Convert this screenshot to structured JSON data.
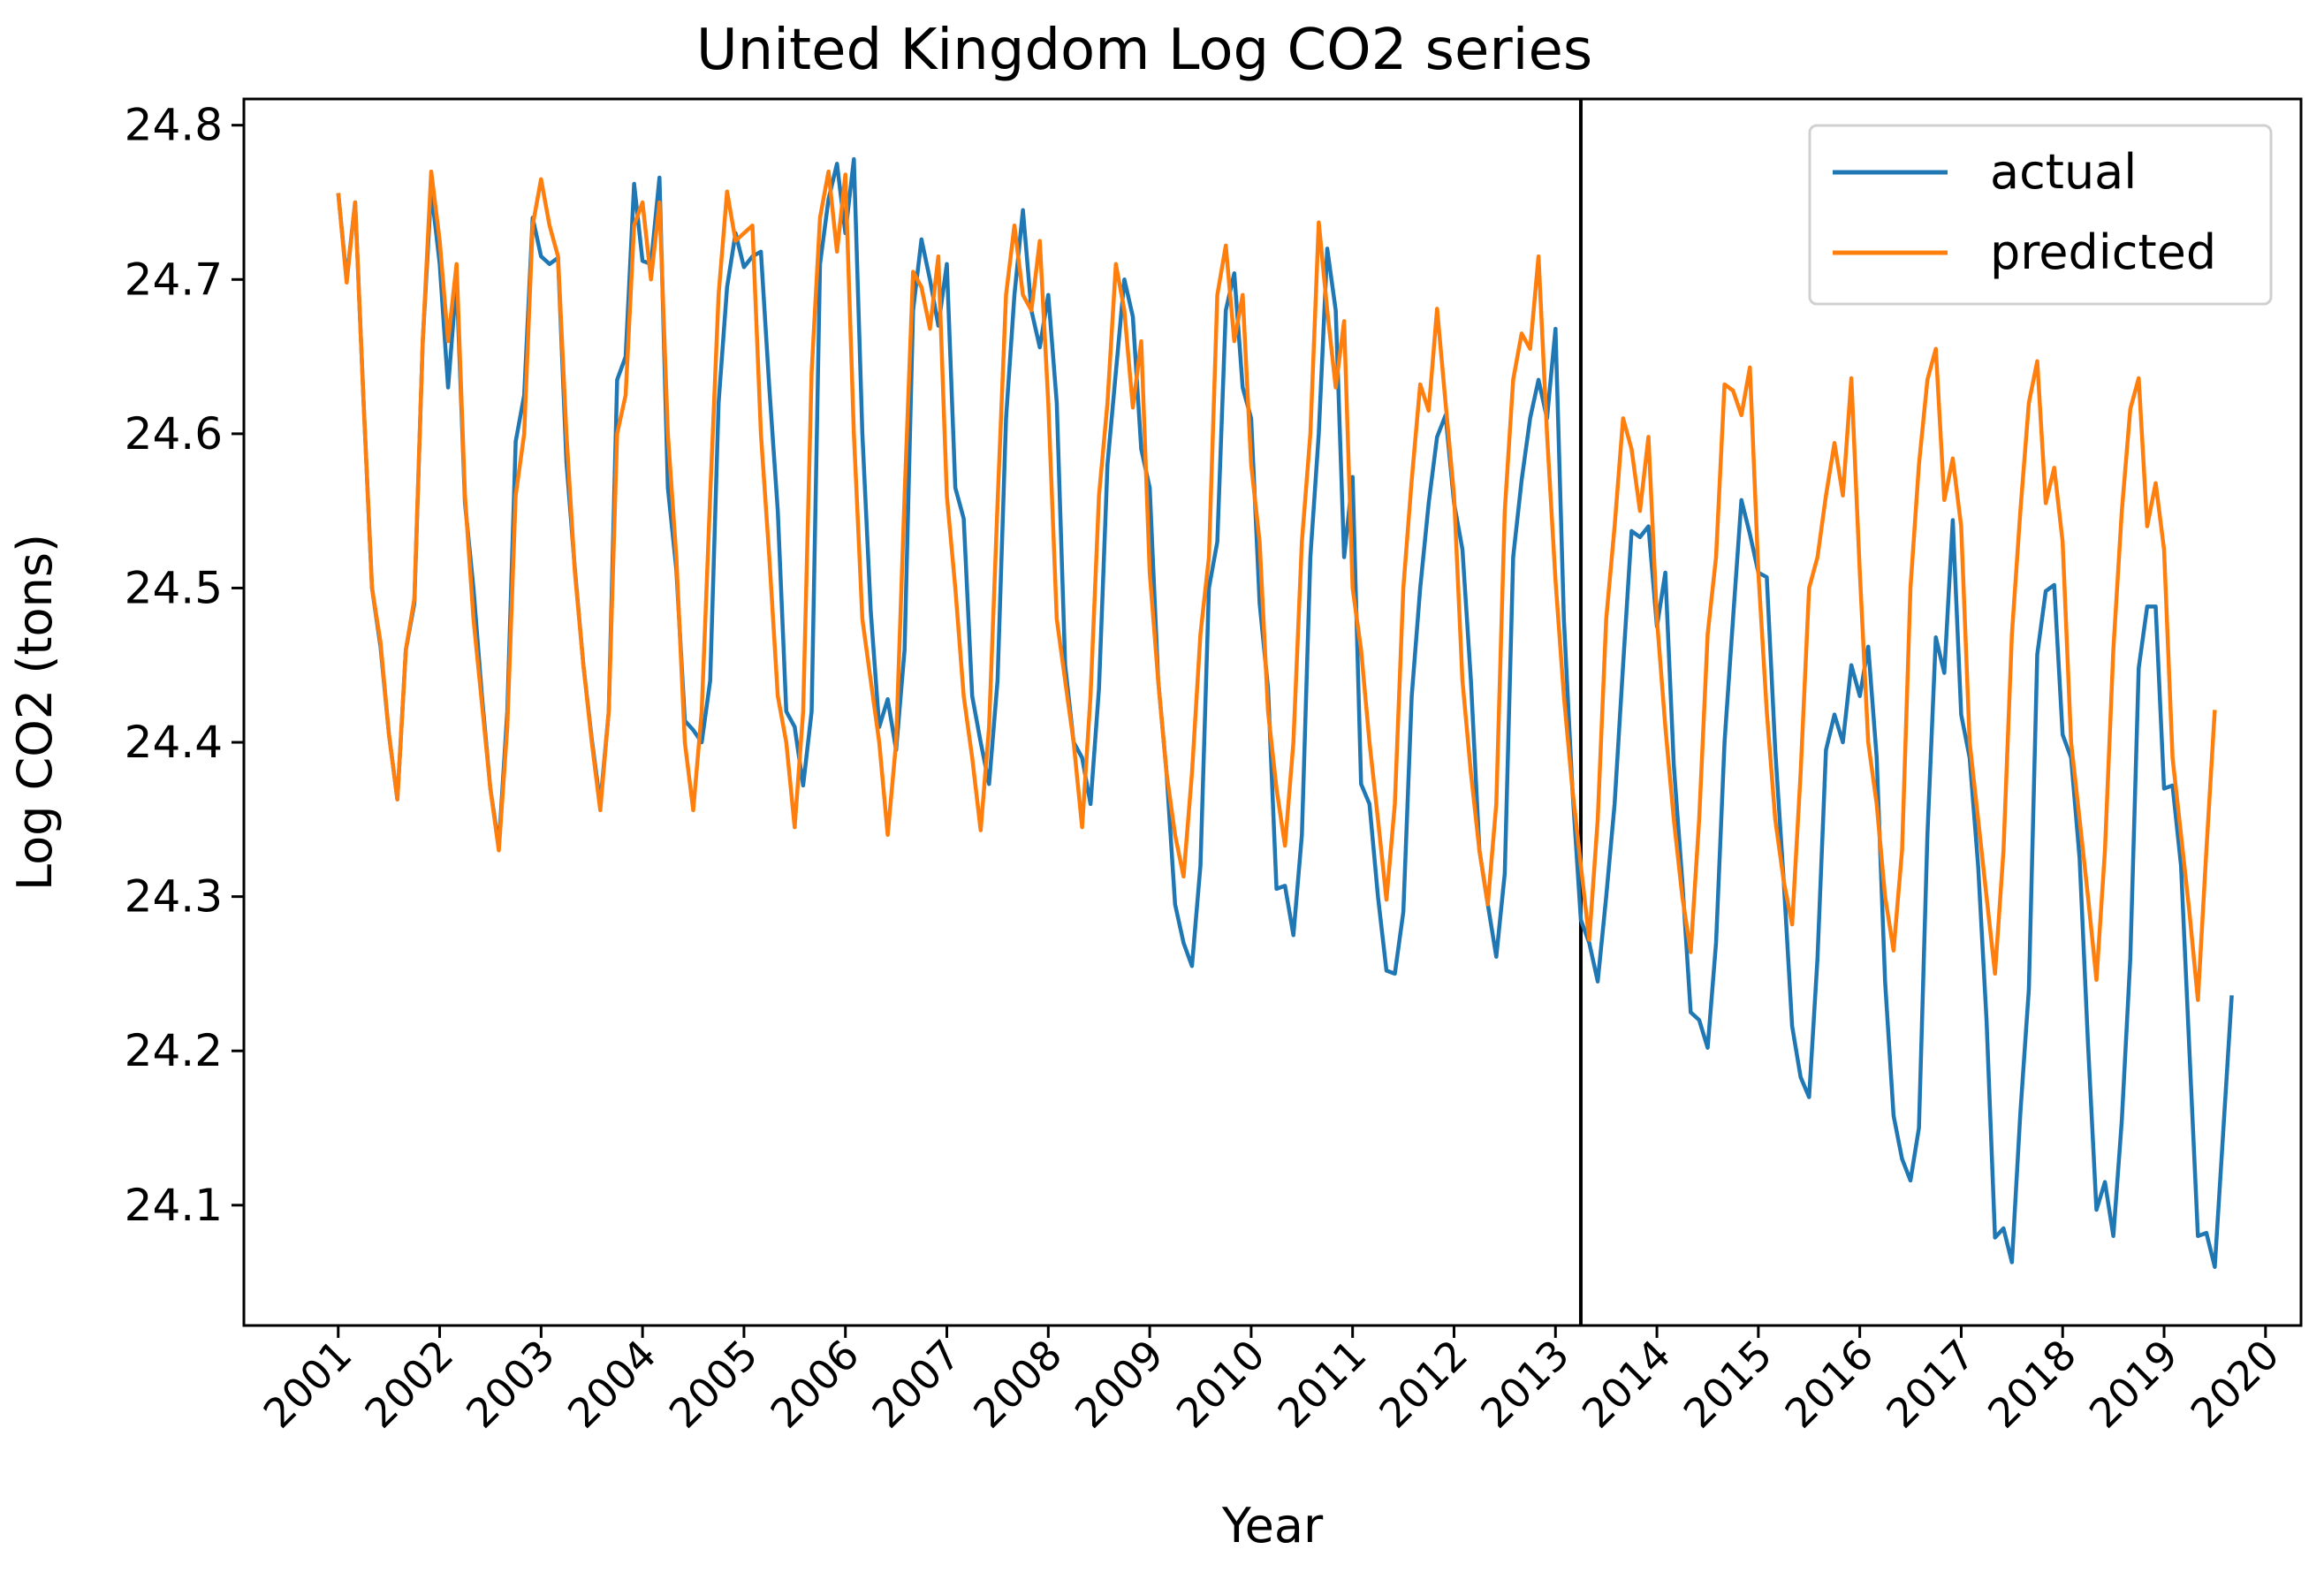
{
  "chart_data": {
    "type": "line",
    "title": "United Kingdom Log CO2 series",
    "xlabel": "Year",
    "ylabel": "Log CO2 (tons)",
    "x_ticks": [
      "2001",
      "2002",
      "2003",
      "2004",
      "2005",
      "2006",
      "2007",
      "2008",
      "2009",
      "2010",
      "2011",
      "2012",
      "2013",
      "2014",
      "2015",
      "2016",
      "2017",
      "2018",
      "2019",
      "2020"
    ],
    "y_ticks": [
      "24.1",
      "24.2",
      "24.3",
      "24.4",
      "24.5",
      "24.6",
      "24.7",
      "24.8"
    ],
    "xlim": [
      2000.07,
      2020.35
    ],
    "ylim": [
      24.022,
      24.817
    ],
    "grid": false,
    "legend_position": "top-right",
    "vertical_line_x": 2013.25,
    "series": [
      {
        "name": "actual",
        "color": "#1f77b4",
        "start_year": 2001.0,
        "step": 0.08333333,
        "values": [
          24.756,
          24.7,
          24.75,
          24.62,
          24.5,
          24.462,
          24.405,
          24.363,
          24.46,
          24.49,
          24.66,
          24.758,
          24.71,
          24.63,
          24.7,
          24.555,
          24.5,
          24.43,
          24.37,
          24.333,
          24.42,
          24.595,
          24.625,
          24.74,
          24.715,
          24.71,
          24.714,
          24.582,
          24.512,
          24.45,
          24.402,
          24.36,
          24.42,
          24.635,
          24.65,
          24.762,
          24.712,
          24.71,
          24.766,
          24.565,
          24.512,
          24.414,
          24.408,
          24.4,
          24.44,
          24.62,
          24.695,
          24.73,
          24.708,
          24.715,
          24.718,
          24.63,
          24.55,
          24.42,
          24.41,
          24.372,
          24.42,
          24.71,
          24.752,
          24.775,
          24.73,
          24.778,
          24.6,
          24.485,
          24.41,
          24.428,
          24.395,
          24.46,
          24.68,
          24.726,
          24.7,
          24.67,
          24.71,
          24.565,
          24.545,
          24.43,
          24.4,
          24.373,
          24.44,
          24.61,
          24.69,
          24.745,
          24.68,
          24.656,
          24.69,
          24.62,
          24.45,
          24.4,
          24.39,
          24.36,
          24.435,
          24.58,
          24.64,
          24.7,
          24.676,
          24.59,
          24.565,
          24.44,
          24.38,
          24.295,
          24.27,
          24.255,
          24.32,
          24.5,
          24.53,
          24.68,
          24.704,
          24.63,
          24.61,
          24.49,
          24.435,
          24.305,
          24.307,
          24.275,
          24.34,
          24.52,
          24.6,
          24.72,
          24.68,
          24.52,
          24.572,
          24.373,
          24.36,
          24.3,
          24.252,
          24.25,
          24.29,
          24.43,
          24.5,
          24.555,
          24.598,
          24.612,
          24.555,
          24.525,
          24.44,
          24.33,
          24.295,
          24.261,
          24.315,
          24.52,
          24.57,
          24.61,
          24.635,
          24.61,
          24.668,
          24.48,
          24.37,
          24.285,
          24.27,
          24.245,
          24.3,
          24.36,
          24.45,
          24.537,
          24.533,
          24.54,
          24.475,
          24.51,
          24.385,
          24.31,
          24.225,
          24.22,
          24.202,
          24.27,
          24.4,
          24.48,
          24.557,
          24.535,
          24.51,
          24.507,
          24.395,
          24.31,
          24.216,
          24.183,
          24.17,
          24.26,
          24.395,
          24.418,
          24.4,
          24.45,
          24.43,
          24.462,
          24.39,
          24.245,
          24.158,
          24.13,
          24.116,
          24.15,
          24.34,
          24.468,
          24.445,
          24.544,
          24.418,
          24.39,
          24.32,
          24.22,
          24.079,
          24.085,
          24.063,
          24.16,
          24.24,
          24.457,
          24.498,
          24.502,
          24.405,
          24.39,
          24.325,
          24.205,
          24.097,
          24.115,
          24.08,
          24.155,
          24.26,
          24.448,
          24.488,
          24.488,
          24.37,
          24.372,
          24.32,
          24.2,
          24.08,
          24.082,
          24.06,
          24.148,
          24.236
        ]
      },
      {
        "name": "predicted",
        "color": "#ff7f0e",
        "start_year": 2001.0,
        "step": 0.08333333,
        "values": [
          24.756,
          24.698,
          24.75,
          24.62,
          24.5,
          24.465,
          24.405,
          24.363,
          24.46,
          24.493,
          24.66,
          24.77,
          24.725,
          24.66,
          24.71,
          24.56,
          24.48,
          24.425,
          24.37,
          24.33,
          24.41,
          24.56,
          24.6,
          24.735,
          24.765,
          24.735,
          24.715,
          24.6,
          24.51,
          24.45,
          24.4,
          24.356,
          24.42,
          24.6,
          24.625,
          24.735,
          24.75,
          24.7,
          24.75,
          24.6,
          24.52,
          24.4,
          24.356,
          24.42,
          24.56,
          24.69,
          24.757,
          24.725,
          24.73,
          24.735,
          24.6,
          24.52,
          24.43,
          24.4,
          24.345,
          24.42,
          24.64,
          24.74,
          24.77,
          24.718,
          24.768,
          24.6,
          24.48,
          24.44,
          24.4,
          24.34,
          24.4,
          24.56,
          24.705,
          24.695,
          24.668,
          24.715,
          24.56,
          24.5,
          24.43,
          24.39,
          24.343,
          24.41,
          24.555,
          24.69,
          24.735,
          24.69,
          24.68,
          24.725,
          24.62,
          24.48,
          24.44,
          24.4,
          24.345,
          24.43,
          24.56,
          24.62,
          24.71,
          24.68,
          24.617,
          24.66,
          24.51,
          24.44,
          24.38,
          24.34,
          24.313,
          24.38,
          24.47,
          24.52,
          24.69,
          24.722,
          24.66,
          24.69,
          24.58,
          24.53,
          24.42,
          24.37,
          24.333,
          24.4,
          24.53,
          24.6,
          24.737,
          24.68,
          24.63,
          24.673,
          24.5,
          24.46,
          24.4,
          24.35,
          24.298,
          24.36,
          24.5,
          24.57,
          24.632,
          24.615,
          24.681,
          24.62,
          24.56,
          24.44,
          24.38,
          24.33,
          24.295,
          24.36,
          24.55,
          24.635,
          24.665,
          24.655,
          24.715,
          24.6,
          24.505,
          24.43,
          24.37,
          24.32,
          24.272,
          24.35,
          24.48,
          24.54,
          24.61,
          24.59,
          24.55,
          24.598,
          24.48,
          24.41,
          24.35,
          24.3,
          24.264,
          24.35,
          24.47,
          24.52,
          24.632,
          24.628,
          24.612,
          24.643,
          24.51,
          24.42,
          24.35,
          24.31,
          24.282,
          24.38,
          24.5,
          24.52,
          24.56,
          24.594,
          24.56,
          24.636,
          24.51,
          24.4,
          24.36,
          24.3,
          24.265,
          24.33,
          24.5,
          24.58,
          24.635,
          24.655,
          24.557,
          24.584,
          24.54,
          24.4,
          24.35,
          24.3,
          24.25,
          24.33,
          24.47,
          24.55,
          24.62,
          24.647,
          24.555,
          24.578,
          24.53,
          24.4,
          24.35,
          24.3,
          24.246,
          24.33,
          24.46,
          24.55,
          24.616,
          24.636,
          24.54,
          24.568,
          24.525,
          24.39,
          24.34,
          24.29,
          24.233,
          24.33,
          24.421
        ]
      }
    ]
  }
}
